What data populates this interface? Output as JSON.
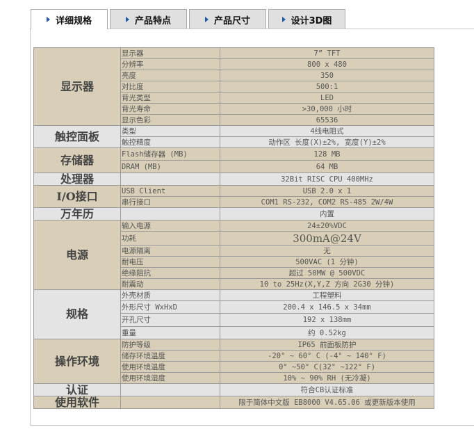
{
  "tabs": [
    {
      "label": "详细规格",
      "active": true
    },
    {
      "label": "产品特点"
    },
    {
      "label": "产品尺寸"
    },
    {
      "label": "设计3D图"
    }
  ],
  "colors": {
    "tan": "#d9cfb8",
    "gray": "#e4e4e4",
    "arrow": "#1e5aa8"
  },
  "groups": [
    {
      "name": "显示器",
      "shade": "tan",
      "rows": [
        [
          "显示器",
          "7” TFT"
        ],
        [
          "分辨率",
          "800 x 480"
        ],
        [
          "亮度",
          "350"
        ],
        [
          "对比度",
          "500:1"
        ],
        [
          "背光类型",
          "LED"
        ],
        [
          "背光寿命",
          ">30,000 小时"
        ],
        [
          "显示色彩",
          "65536"
        ]
      ]
    },
    {
      "name": "触控面板",
      "shade": "gray",
      "rows": [
        [
          "类型",
          "4线电阻式"
        ],
        [
          "触控精度",
          "动作区 长度(X)±2%, 宽度(Y)±2%"
        ]
      ]
    },
    {
      "name": "存储器",
      "shade": "tan",
      "rows": [
        [
          "Flash储存器 (MB)",
          "128 MB"
        ],
        [
          "DRAM (MB)",
          "64 MB"
        ]
      ]
    },
    {
      "name": "处理器",
      "shade": "gray",
      "rows": [
        [
          "",
          "32Bit RISC CPU 400MHz"
        ]
      ]
    },
    {
      "name": "I/O接口",
      "shade": "tan",
      "rows": [
        [
          "USB Client",
          "USB 2.0 x 1"
        ],
        [
          "串行接口",
          "COM1 RS-232, COM2 RS-485 2W/4W"
        ]
      ]
    },
    {
      "name": "万年历",
      "shade": "gray",
      "rows": [
        [
          "",
          "内置"
        ]
      ]
    },
    {
      "name": "电源",
      "shade": "tan",
      "rows": [
        [
          "输入电源",
          "24±20%VDC"
        ],
        [
          "功耗",
          "300mA@24V"
        ],
        [
          "电源隔离",
          "无"
        ],
        [
          "耐电压",
          "500VAC (1 分钟)"
        ],
        [
          "绝缘阻抗",
          "超过 50MW @ 500VDC"
        ],
        [
          "耐震动",
          "10 to 25Hz(X,Y,Z 方向 2G30 分钟)"
        ]
      ]
    },
    {
      "name": "规格",
      "shade": "gray",
      "rows": [
        [
          "外壳材质",
          "工程塑料"
        ],
        [
          "外形尺寸 WxHxD",
          "200.4 x 146.5 x 34mm"
        ],
        [
          "开孔尺寸",
          "192 x 138mm"
        ],
        [
          "重量",
          "约 0.52kg"
        ]
      ]
    },
    {
      "name": "操作环境",
      "shade": "tan",
      "rows": [
        [
          "防护等级",
          "IP65 前面板防护"
        ],
        [
          "储存环境温度",
          "-20° ~ 60° C (-4° ~ 140° F)"
        ],
        [
          "使用环境温度",
          "0° ~50° C(32° ~122° F)"
        ],
        [
          "使用环境湿度",
          "10% ~ 90% RH (无冷凝)"
        ]
      ]
    },
    {
      "name": "认证",
      "shade": "gray",
      "rows": [
        [
          "",
          "符合CB认证标准"
        ]
      ]
    },
    {
      "name": "使用软件",
      "shade": "tan",
      "rows": [
        [
          "",
          "限于简体中文版 EB8000 V4.65.06 或更新版本使用"
        ]
      ]
    }
  ]
}
